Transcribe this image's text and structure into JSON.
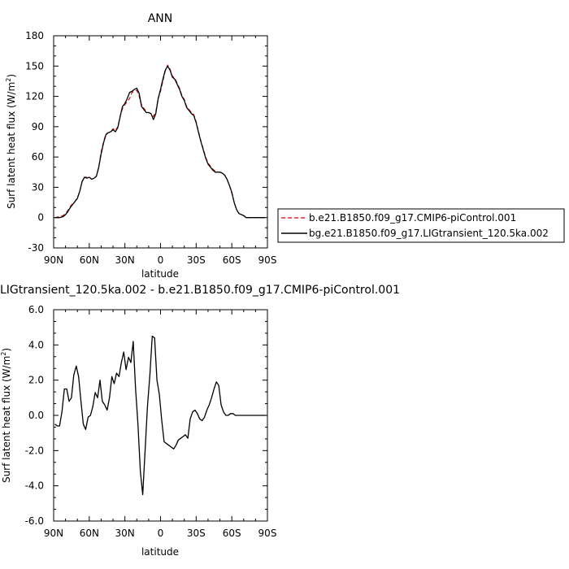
{
  "chart_data": [
    {
      "type": "line",
      "title": "ANN",
      "xlabel": "latitude",
      "ylabel": "Surf latent heat flux (W/m",
      "ylabel_sup": "2",
      "ylabel_close": ")",
      "xlim": [
        90,
        -90
      ],
      "ylim": [
        -30,
        180
      ],
      "xticks": [
        90,
        60,
        30,
        0,
        -30,
        -60,
        -90
      ],
      "xtick_labels": [
        "90N",
        "60N",
        "30N",
        "0",
        "30S",
        "60S",
        "90S"
      ],
      "yticks": [
        -30,
        0,
        30,
        60,
        90,
        120,
        150,
        180
      ],
      "ytick_labels": [
        "-30",
        "0",
        "30",
        "60",
        "90",
        "120",
        "150",
        "180"
      ],
      "legend_position": "right",
      "series": [
        {
          "name": "b.e21.B1850.f09_g17.CMIP6-piControl.001",
          "color": "#cc0000",
          "dash": "dashed",
          "x": [
            89,
            85,
            82,
            80,
            78,
            76,
            74,
            72,
            70,
            68,
            66,
            64,
            62,
            60,
            58,
            56,
            54,
            52,
            50,
            48,
            46,
            44,
            42,
            40,
            38,
            36,
            34,
            32,
            30,
            28,
            26,
            24,
            22,
            20,
            18,
            16,
            14,
            12,
            10,
            8,
            6,
            4,
            2,
            0,
            -2,
            -4,
            -6,
            -8,
            -10,
            -12,
            -14,
            -16,
            -18,
            -20,
            -22,
            -24,
            -26,
            -28,
            -30,
            -32,
            -34,
            -36,
            -38,
            -40,
            -42,
            -44,
            -46,
            -48,
            -50,
            -52,
            -54,
            -56,
            -58,
            -60,
            -62,
            -64,
            -66,
            -68,
            -70,
            -72,
            -74,
            -76,
            -78,
            -80,
            -82,
            -84,
            -86,
            -88
          ],
          "y": [
            0,
            1,
            2,
            4,
            7,
            11,
            14,
            16,
            20,
            26,
            36,
            40,
            40,
            40,
            38,
            39,
            41,
            50,
            65,
            75,
            83,
            84,
            85,
            88,
            86,
            90,
            100,
            108,
            112,
            115,
            118,
            124,
            125,
            126,
            120,
            112,
            108,
            105,
            104,
            103,
            100,
            105,
            118,
            125,
            135,
            145,
            151,
            147,
            140,
            138,
            133,
            128,
            121,
            117,
            110,
            107,
            104,
            102,
            95,
            85,
            76,
            68,
            60,
            54,
            51,
            48,
            46,
            45,
            45,
            44,
            42,
            38,
            32,
            24,
            15,
            8,
            4,
            3,
            2,
            1,
            0,
            0,
            0,
            0,
            0,
            0,
            0,
            0
          ]
        },
        {
          "name": "bg.e21.B1850.f09_g17.LIGtransient_120.5ka.002",
          "color": "#000000",
          "dash": "solid",
          "x": [
            89,
            85,
            82,
            80,
            78,
            76,
            74,
            72,
            70,
            68,
            66,
            64,
            62,
            60,
            58,
            56,
            54,
            52,
            50,
            48,
            46,
            44,
            42,
            40,
            38,
            36,
            34,
            32,
            30,
            28,
            26,
            24,
            22,
            20,
            18,
            16,
            14,
            12,
            10,
            8,
            6,
            4,
            2,
            0,
            -2,
            -4,
            -6,
            -8,
            -10,
            -12,
            -14,
            -16,
            -18,
            -20,
            -22,
            -24,
            -26,
            -28,
            -30,
            -32,
            -34,
            -36,
            -38,
            -40,
            -42,
            -44,
            -46,
            -48,
            -50,
            -52,
            -54,
            -56,
            -58,
            -60,
            -62,
            -64,
            -66,
            -68,
            -70,
            -72,
            -74,
            -76,
            -78,
            -80,
            -82,
            -84,
            -86,
            -88
          ],
          "y": [
            0,
            0,
            1,
            3,
            6,
            10,
            13,
            16,
            19,
            26,
            36,
            40,
            39,
            40,
            38,
            39,
            41,
            50,
            63,
            74,
            82,
            84,
            85,
            87,
            85,
            89,
            100,
            110,
            113,
            118,
            124,
            125,
            127,
            128,
            123,
            110,
            107,
            104,
            104,
            103,
            97,
            103,
            118,
            127,
            137,
            146,
            150,
            146,
            139,
            137,
            132,
            127,
            120,
            116,
            109,
            106,
            103,
            101,
            94,
            84,
            75,
            67,
            59,
            53,
            50,
            47,
            45,
            45,
            45,
            44,
            42,
            38,
            32,
            25,
            15,
            8,
            4,
            3,
            2,
            0,
            0,
            0,
            0,
            0,
            0,
            0,
            0,
            0
          ]
        }
      ]
    },
    {
      "type": "line",
      "title": "LIGtransient_120.5ka.002 - b.e21.B1850.f09_g17.CMIP6-piControl.001",
      "xlabel": "latitude",
      "ylabel": "Surf latent heat flux (W/m",
      "ylabel_sup": "2",
      "ylabel_close": ")",
      "xlim": [
        90,
        -90
      ],
      "ylim": [
        -6,
        6
      ],
      "xticks": [
        90,
        60,
        30,
        0,
        -30,
        -60,
        -90
      ],
      "xtick_labels": [
        "90N",
        "60N",
        "30N",
        "0",
        "30S",
        "60S",
        "90S"
      ],
      "yticks": [
        -6,
        -4,
        -2,
        0,
        2,
        4,
        6
      ],
      "ytick_labels": [
        "-6.0",
        "-4.0",
        "-2.0",
        "0.0",
        "2.0",
        "4.0",
        "6.0"
      ],
      "series": [
        {
          "name": "",
          "color": "#000000",
          "dash": "solid",
          "x": [
            89,
            87,
            85,
            83,
            81,
            79,
            77,
            75,
            73,
            71,
            69,
            67,
            65,
            63,
            61,
            59,
            57,
            55,
            53,
            51,
            49,
            47,
            45,
            43,
            41,
            39,
            37,
            35,
            33,
            31,
            29,
            27,
            25,
            23,
            21,
            19,
            17,
            15,
            13,
            11,
            9,
            7,
            5,
            3,
            1,
            -1,
            -3,
            -5,
            -7,
            -9,
            -11,
            -13,
            -15,
            -17,
            -19,
            -21,
            -23,
            -25,
            -27,
            -29,
            -31,
            -33,
            -35,
            -37,
            -39,
            -41,
            -43,
            -45,
            -47,
            -49,
            -51,
            -53,
            -55,
            -57,
            -59,
            -61,
            -63,
            -65,
            -67,
            -69,
            -71,
            -73,
            -75,
            -77,
            -79,
            -81,
            -83,
            -85,
            -87,
            -89
          ],
          "y": [
            -0.5,
            -0.6,
            -0.6,
            0.2,
            1.5,
            1.5,
            0.8,
            1.0,
            2.3,
            2.8,
            2.2,
            0.8,
            -0.5,
            -0.8,
            -0.1,
            0.0,
            0.5,
            1.3,
            1.0,
            2.0,
            0.8,
            0.6,
            0.3,
            1.0,
            2.2,
            1.8,
            2.4,
            2.2,
            3.0,
            3.6,
            2.6,
            3.3,
            3.0,
            4.2,
            1.5,
            -0.5,
            -3.2,
            -4.5,
            -2.0,
            0.5,
            2.3,
            4.5,
            4.4,
            2.0,
            1.2,
            -0.3,
            -1.5,
            -1.6,
            -1.7,
            -1.8,
            -1.9,
            -1.7,
            -1.4,
            -1.3,
            -1.2,
            -1.1,
            -1.3,
            -0.2,
            0.2,
            0.3,
            0.1,
            -0.2,
            -0.3,
            -0.1,
            0.3,
            0.6,
            1.0,
            1.5,
            1.9,
            1.7,
            0.6,
            0.2,
            0.0,
            0.0,
            0.1,
            0.1,
            0.0,
            0.0,
            0.0,
            0.0,
            0.0,
            0.0,
            0.0,
            0.0,
            0.0,
            0.0,
            0.0,
            0.0,
            0.0,
            0.0
          ]
        }
      ]
    }
  ]
}
